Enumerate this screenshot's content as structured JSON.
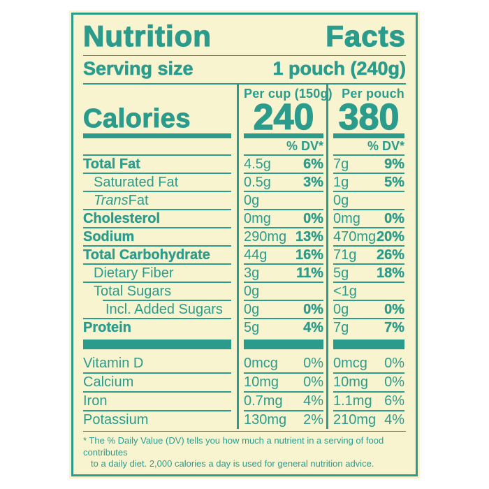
{
  "colors": {
    "teal": "#2b9b8c",
    "cream": "#f8f4d0",
    "page_background": "#ffffff"
  },
  "label": {
    "title": {
      "word1": "Nutrition",
      "word2": "Facts"
    },
    "serving": {
      "label": "Serving size",
      "value": "1 pouch (240g)"
    },
    "calories": {
      "label": "Calories",
      "dv_header": "% DV*",
      "columns": [
        {
          "header": "Per cup (150g)",
          "value": "240"
        },
        {
          "header": "Per pouch",
          "value": "380"
        }
      ]
    },
    "nutrients": [
      {
        "name": "Total Fat",
        "cup_amount": "4.5g",
        "cup_dv": "6%",
        "pouch_amount": "7g",
        "pouch_dv": "9%"
      },
      {
        "name": "Saturated Fat",
        "cup_amount": "0.5g",
        "cup_dv": "3%",
        "pouch_amount": "1g",
        "pouch_dv": "5%"
      },
      {
        "name_italic": "Trans",
        "name_rest": " Fat",
        "cup_amount": "0g",
        "cup_dv": "",
        "pouch_amount": "0g",
        "pouch_dv": ""
      },
      {
        "name": "Cholesterol",
        "cup_amount": "0mg",
        "cup_dv": "0%",
        "pouch_amount": "0mg",
        "pouch_dv": "0%"
      },
      {
        "name": "Sodium",
        "cup_amount": "290mg",
        "cup_dv": "13%",
        "pouch_amount": "470mg",
        "pouch_dv": "20%"
      },
      {
        "name": "Total Carbohydrate",
        "cup_amount": "44g",
        "cup_dv": "16%",
        "pouch_amount": "71g",
        "pouch_dv": "26%"
      },
      {
        "name": "Dietary Fiber",
        "cup_amount": "3g",
        "cup_dv": "11%",
        "pouch_amount": "5g",
        "pouch_dv": "18%"
      },
      {
        "name": "Total Sugars",
        "cup_amount": "0g",
        "cup_dv": "",
        "pouch_amount": "<1g",
        "pouch_dv": ""
      },
      {
        "name": "Incl. Added Sugars",
        "cup_amount": "0g",
        "cup_dv": "0%",
        "pouch_amount": "0g",
        "pouch_dv": "0%"
      },
      {
        "name": "Protein",
        "cup_amount": "5g",
        "cup_dv": "4%",
        "pouch_amount": "7g",
        "pouch_dv": "7%"
      }
    ],
    "vitamins": [
      {
        "name": "Vitamin D",
        "cup_amount": "0mcg",
        "cup_dv": "0%",
        "pouch_amount": "0mcg",
        "pouch_dv": "0%"
      },
      {
        "name": "Calcium",
        "cup_amount": "10mg",
        "cup_dv": "0%",
        "pouch_amount": "10mg",
        "pouch_dv": "0%"
      },
      {
        "name": "Iron",
        "cup_amount": "0.7mg",
        "cup_dv": "4%",
        "pouch_amount": "1.1mg",
        "pouch_dv": "6%"
      },
      {
        "name": "Potassium",
        "cup_amount": "130mg",
        "cup_dv": "2%",
        "pouch_amount": "210mg",
        "pouch_dv": "4%"
      }
    ],
    "footnote": {
      "line1": "* The % Daily Value (DV) tells you how much a nutrient in a serving of food contributes",
      "line2": "to a daily diet. 2,000 calories a day is used for general nutrition advice."
    }
  }
}
